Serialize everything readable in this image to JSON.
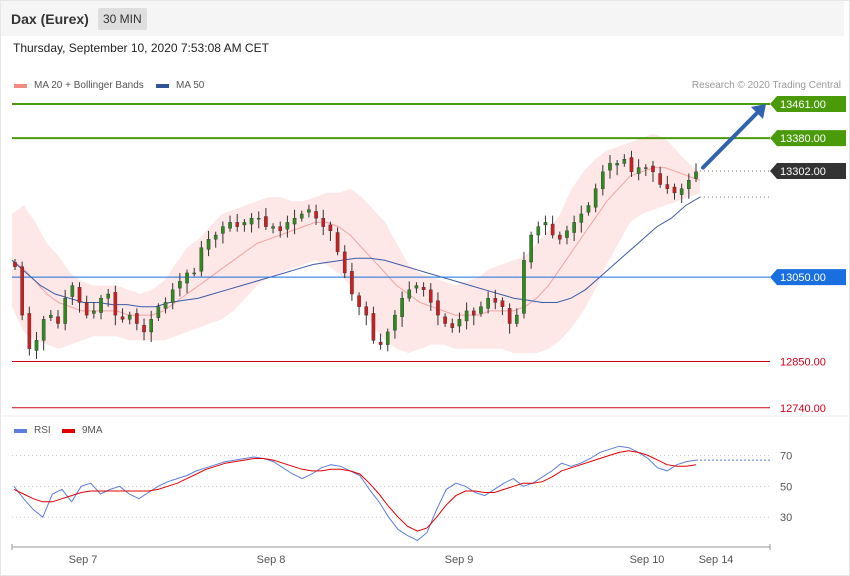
{
  "header": {
    "title": "Dax (Eurex)",
    "timeframe": "30 MIN"
  },
  "date_line": "Thursday, September 10, 2020 7:53:08 AM CET",
  "legend_main": [
    {
      "label": "MA 20 + Bollinger Bands",
      "color": "#f28b82"
    },
    {
      "label": "MA 50",
      "color": "#2f5597"
    }
  ],
  "credit": "Research © 2020 Trading Central",
  "legend_rsi": [
    {
      "label": "RSI",
      "color": "#5b7fdc"
    },
    {
      "label": "9MA",
      "color": "#e00000"
    }
  ],
  "chart_data": [
    {
      "type": "candlestick",
      "price_range": [
        12730,
        13480
      ],
      "last_price": 13302,
      "levels": [
        {
          "value": 13461,
          "label": "13461.00",
          "kind": "target",
          "color": "#4a9a0a"
        },
        {
          "value": 13380,
          "label": "13380.00",
          "kind": "target",
          "color": "#4a9a0a"
        },
        {
          "value": 13302,
          "label": "13302.00",
          "kind": "last",
          "color": "#333333"
        },
        {
          "value": 13050,
          "label": "13050.00",
          "kind": "pivot",
          "color": "#1a6fe0"
        },
        {
          "value": 12850,
          "label": "12850.00",
          "kind": "support",
          "color": "#d0021b"
        },
        {
          "value": 12740,
          "label": "12740.00",
          "kind": "support",
          "color": "#d0021b"
        }
      ],
      "x_labels": [
        "Sep 7",
        "Sep 8",
        "Sep 9",
        "Sep 10",
        "Sep 14"
      ],
      "close_path": [
        13075,
        12960,
        12880,
        12900,
        12950,
        12960,
        12940,
        13000,
        13030,
        12990,
        12960,
        12970,
        13000,
        13010,
        12960,
        12950,
        12960,
        12940,
        12920,
        12950,
        12980,
        12990,
        13020,
        13040,
        13060,
        13060,
        13120,
        13140,
        13150,
        13170,
        13180,
        13170,
        13180,
        13190,
        13190,
        13170,
        13170,
        13160,
        13180,
        13190,
        13200,
        13210,
        13190,
        13170,
        13160,
        13110,
        13060,
        13010,
        12980,
        12960,
        12900,
        12890,
        12920,
        12960,
        13000,
        13020,
        13030,
        13020,
        12990,
        12960,
        12940,
        12930,
        12950,
        12970,
        12960,
        12980,
        13000,
        12990,
        12980,
        12940,
        12960,
        13090,
        13150,
        13170,
        13180,
        13150,
        13140,
        13160,
        13180,
        13200,
        13220,
        13260,
        13300,
        13320,
        13320,
        13330,
        13300,
        13310,
        13310,
        13300,
        13270,
        13260,
        13250,
        13260,
        13280,
        13300
      ],
      "bollinger": {
        "upper": [
          13200,
          13220,
          13180,
          13130,
          13100,
          13060,
          13040,
          13030,
          13030,
          13030,
          13020,
          13010,
          13020,
          13040,
          13080,
          13120,
          13140,
          13170,
          13200,
          13210,
          13220,
          13230,
          13240,
          13240,
          13230,
          13230,
          13240,
          13250,
          13250,
          13260,
          13240,
          13210,
          13180,
          13130,
          13080,
          13060,
          13050,
          13040,
          13030,
          13040,
          13050,
          13070,
          13080,
          13090,
          13100,
          13130,
          13160,
          13200,
          13260,
          13300,
          13330,
          13350,
          13360,
          13370,
          13380,
          13390,
          13380,
          13350,
          13320,
          13300
        ],
        "middle": [
          13090,
          13070,
          13040,
          13010,
          12990,
          12980,
          12970,
          12970,
          12970,
          12970,
          12960,
          12960,
          12960,
          12970,
          12990,
          13010,
          13030,
          13050,
          13070,
          13090,
          13110,
          13130,
          13140,
          13150,
          13160,
          13170,
          13180,
          13180,
          13170,
          13150,
          13120,
          13090,
          13060,
          13030,
          13010,
          12990,
          12980,
          12970,
          12960,
          12960,
          12960,
          12970,
          12970,
          12970,
          12980,
          13000,
          13030,
          13070,
          13110,
          13150,
          13190,
          13230,
          13260,
          13290,
          13300,
          13310,
          13310,
          13300,
          13290,
          13280
        ],
        "lower": [
          12980,
          12920,
          12900,
          12890,
          12880,
          12890,
          12900,
          12910,
          12910,
          12910,
          12900,
          12900,
          12900,
          12900,
          12910,
          12920,
          12930,
          12940,
          12950,
          12970,
          13000,
          13030,
          13050,
          13060,
          13070,
          13080,
          13090,
          13080,
          13060,
          13030,
          12980,
          12930,
          12900,
          12880,
          12870,
          12880,
          12890,
          12890,
          12880,
          12880,
          12880,
          12880,
          12880,
          12870,
          12870,
          12870,
          12880,
          12900,
          12930,
          12970,
          13020,
          13080,
          13130,
          13180,
          13200,
          13210,
          13220,
          13230,
          13240,
          13250
        ]
      },
      "ma50": [
        13090,
        13060,
        13030,
        13010,
        13000,
        12990,
        12990,
        12985,
        12985,
        12980,
        12980,
        12990,
        12995,
        13000,
        13010,
        13020,
        13030,
        13040,
        13050,
        13060,
        13070,
        13080,
        13085,
        13090,
        13095,
        13095,
        13090,
        13080,
        13070,
        13060,
        13050,
        13040,
        13030,
        13020,
        13010,
        13000,
        12995,
        12990,
        12990,
        13000,
        13020,
        13050,
        13080,
        13110,
        13140,
        13170,
        13190,
        13220,
        13240
      ],
      "projection": {
        "from": 13310,
        "to": 13461
      }
    },
    {
      "type": "line",
      "title": "RSI",
      "y_ticks": [
        70,
        50,
        30
      ],
      "y_range": [
        12,
        80
      ],
      "series": [
        {
          "name": "RSI",
          "values": [
            50,
            42,
            35,
            30,
            45,
            48,
            40,
            50,
            52,
            45,
            48,
            50,
            45,
            42,
            46,
            50,
            53,
            55,
            57,
            60,
            62,
            64,
            66,
            67,
            68,
            69,
            68,
            66,
            62,
            58,
            55,
            58,
            62,
            64,
            63,
            60,
            57,
            48,
            40,
            30,
            22,
            18,
            15,
            20,
            35,
            48,
            52,
            50,
            46,
            44,
            48,
            52,
            55,
            50,
            52,
            56,
            60,
            65,
            63,
            65,
            68,
            72,
            74,
            76,
            75,
            72,
            68,
            62,
            60,
            64,
            66,
            67
          ],
          "smooth": [
            48,
            45,
            42,
            40,
            40,
            42,
            44,
            46,
            47,
            47,
            47,
            47,
            47,
            47,
            47,
            48,
            50,
            52,
            55,
            58,
            61,
            63,
            65,
            66,
            67,
            68,
            68,
            67,
            65,
            63,
            61,
            60,
            60,
            61,
            61,
            60,
            58,
            52,
            45,
            37,
            30,
            24,
            21,
            23,
            30,
            38,
            44,
            47,
            47,
            46,
            46,
            48,
            50,
            52,
            52,
            53,
            56,
            60,
            62,
            64,
            66,
            68,
            70,
            72,
            73,
            72,
            70,
            67,
            64,
            63,
            63,
            64
          ]
        },
        {
          "name": "9MA",
          "values": []
        }
      ]
    }
  ]
}
